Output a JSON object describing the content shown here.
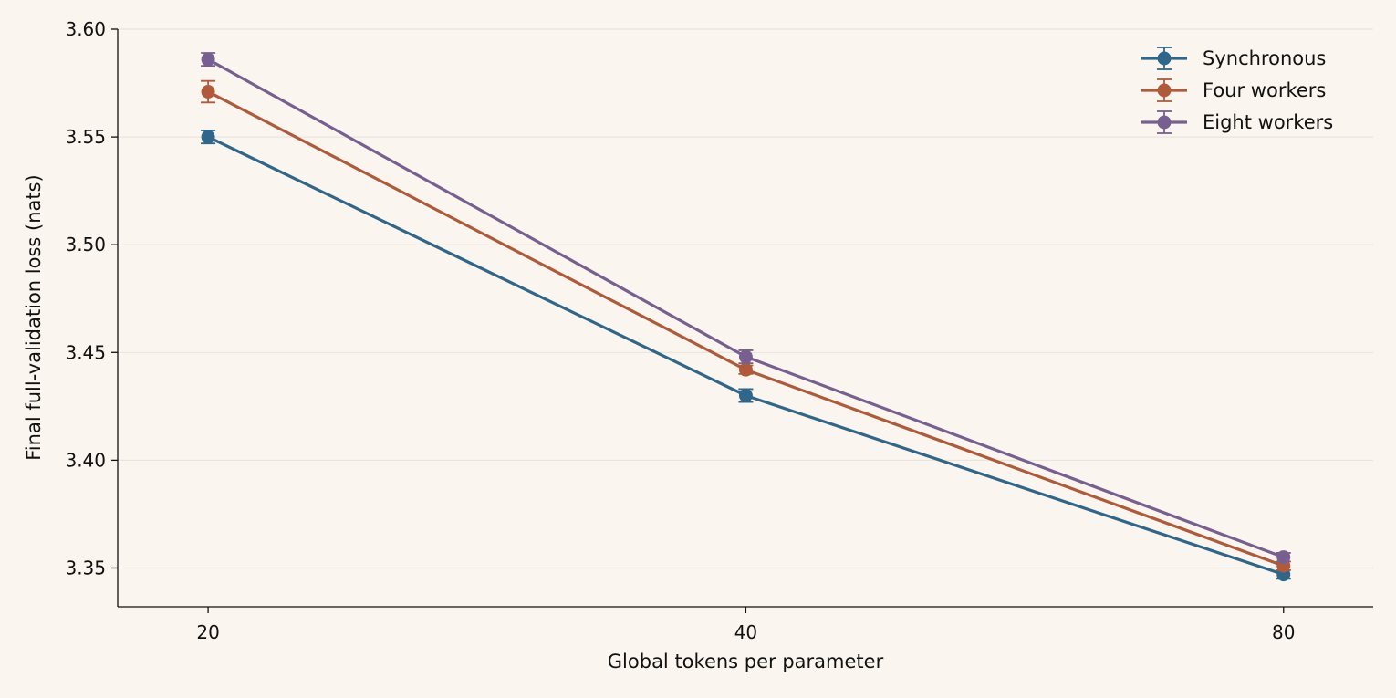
{
  "chart_data": {
    "type": "line",
    "title": "",
    "xlabel": "Global tokens per parameter",
    "ylabel": "Final full-validation loss (nats)",
    "x": [
      20,
      40,
      80
    ],
    "x_tick_labels": [
      "20",
      "40",
      "80"
    ],
    "x_scale": "log",
    "xlim": [
      17.8,
      89.8
    ],
    "ylim": [
      3.332,
      3.6
    ],
    "y_ticks": [
      3.35,
      3.4,
      3.45,
      3.5,
      3.55,
      3.6
    ],
    "y_tick_labels": [
      "3.35",
      "3.40",
      "3.45",
      "3.50",
      "3.55",
      "3.60"
    ],
    "grid": "horizontal",
    "legend_position": "top-right",
    "error_bars": true,
    "background_color": "#faf6ef",
    "series": [
      {
        "name": "Synchronous",
        "color": "#2f6689",
        "values": [
          3.55,
          3.43,
          3.347
        ],
        "errors": [
          0.003,
          0.003,
          0.002
        ]
      },
      {
        "name": "Four workers",
        "color": "#b05a3a",
        "values": [
          3.571,
          3.442,
          3.351
        ],
        "errors": [
          0.005,
          0.002,
          0.002
        ]
      },
      {
        "name": "Eight workers",
        "color": "#77608f",
        "values": [
          3.586,
          3.448,
          3.355
        ],
        "errors": [
          0.003,
          0.003,
          0.002
        ]
      }
    ]
  }
}
